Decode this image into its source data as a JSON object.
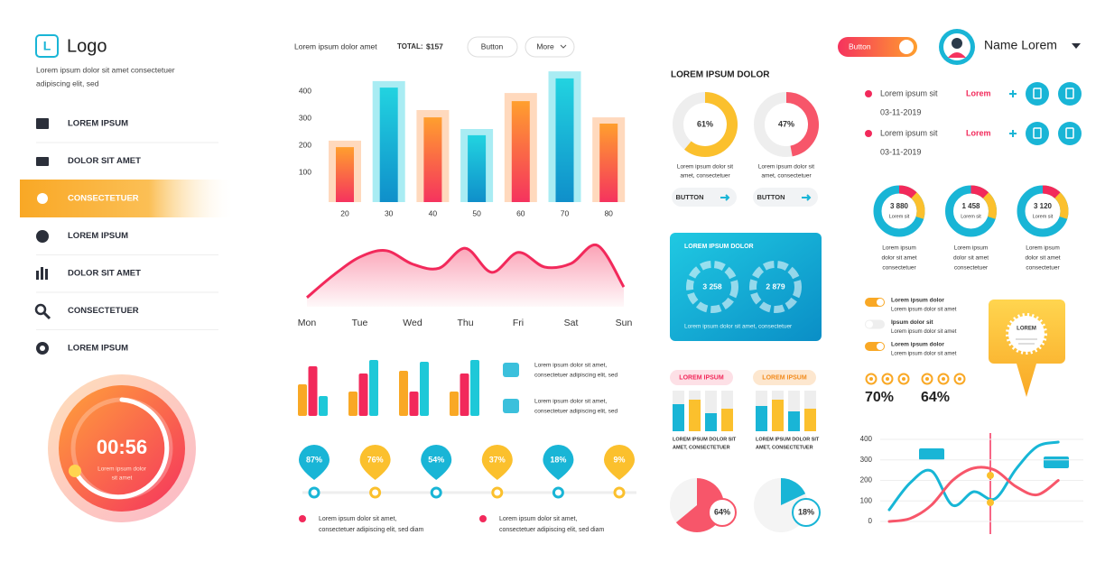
{
  "sidebar": {
    "logo_letter": "L",
    "logo": "Logo",
    "tagline": [
      "Lorem ipsum dolor sit amet consectetuer",
      "adipiscing elit, sed"
    ],
    "menu": [
      "LOREM IPSUM",
      "DOLOR SIT AMET",
      "CONSECTETUER",
      "LOREM IPSUM",
      "DOLOR SIT AMET",
      "CONSECTETUER",
      "LOREM IPSUM"
    ],
    "active": 2,
    "timer": {
      "time": "00:56",
      "caption": [
        "Lorem ipsum dolor",
        "sit amet"
      ]
    }
  },
  "toolbar": {
    "text": "Lorem ipsum dolor amet",
    "total_label": "TOTAL:",
    "total": "$157",
    "button": "Button",
    "more": "More"
  },
  "bar_chart": {
    "categories": [
      "20",
      "30",
      "40",
      "50",
      "60",
      "70",
      "80"
    ],
    "back": [
      217,
      437,
      330,
      260,
      393,
      473,
      303
    ],
    "front": [
      193,
      413,
      303,
      237,
      363,
      447,
      280
    ],
    "ylim": [
      0,
      500
    ],
    "yticks": [
      100,
      200,
      300,
      400
    ]
  },
  "wave_chart": {
    "categories": [
      "Mon",
      null,
      "Tue",
      null,
      "Wed",
      null,
      "Thu",
      null,
      "Fri",
      null,
      "Sat",
      null,
      "Sun"
    ],
    "values": [
      8,
      46,
      77,
      88,
      65,
      58,
      92,
      51,
      85,
      60,
      66,
      97,
      26
    ],
    "ylim": [
      0,
      100
    ]
  },
  "group_chart": {
    "series": [
      {
        "color": "#f9a825",
        "values": [
          35,
          27,
          50,
          27
        ]
      },
      {
        "color": "#f2295b",
        "values": [
          55,
          47,
          27,
          47
        ]
      },
      {
        "color": "#1ec8d8",
        "values": [
          22,
          62,
          60,
          62
        ]
      }
    ],
    "ylim": [
      0,
      70
    ],
    "notes": [
      [
        "Lorem ipsum dolor sit amet,",
        "consectetuer adipiscing elit, sed"
      ],
      [
        "Lorem ipsum dolor sit amet,",
        "consectetuer adipiscing elit, sed"
      ]
    ]
  },
  "timeline": {
    "pins": [
      "87%",
      "76%",
      "54%",
      "37%",
      "18%",
      "9%"
    ],
    "colors": [
      "#19b5d6",
      "#fbc02d"
    ]
  },
  "footer_notes": [
    [
      "Lorem ipsum dolor sit amet,",
      "consectetuer adipiscing elit, sed diam"
    ],
    [
      "Lorem ipsum dolor sit amet,",
      "consectetuer adipiscing elit, sed diam"
    ]
  ],
  "header_right": {
    "toggle": "Button",
    "name": "Name Lorem"
  },
  "donut_panel": {
    "title": "LOREM IPSUM DOLOR",
    "donuts": [
      {
        "value": 61,
        "label": "61%",
        "color": "#fbc02d",
        "caption": [
          "Lorem ipsum dolor sit",
          "amet, consectetuer"
        ],
        "button": "BUTTON"
      },
      {
        "value": 47,
        "label": "47%",
        "color": "#f7566a",
        "caption": [
          "Lorem ipsum dolor sit",
          "amet, consectetuer"
        ],
        "button": "BUTTON"
      }
    ]
  },
  "blue_card": {
    "title": "LOREM IPSUM DOLOR",
    "rings": [
      "3 258",
      "2 879"
    ],
    "caption": "Lorem ipsum dolor sit amet, consectetuer"
  },
  "mini_bars": [
    {
      "label": "LOREM IPSUM",
      "values": [
        30,
        35,
        20,
        25
      ],
      "caption": [
        "LOREM IPSUM DOLOR SIT",
        "AMET, CONSECTETUER"
      ]
    },
    {
      "label": "LOREM IPSUM",
      "values": [
        28,
        35,
        22,
        25
      ],
      "caption": [
        "LOREM IPSUM DOLOR SIT",
        "AMET, CONSECTETUER"
      ]
    }
  ],
  "mini_ylim": [
    0,
    45
  ],
  "pies": [
    {
      "value": 64,
      "label": "64%",
      "color": "#f7566a"
    },
    {
      "value": 18,
      "label": "18%",
      "color": "#19b5d6"
    }
  ],
  "tasks": [
    {
      "text": "Lorem ipsum sit",
      "date": "03-11-2019",
      "tag": "Lorem"
    },
    {
      "text": "Lorem ipsum sit",
      "date": "03-11-2019",
      "tag": "Lorem"
    }
  ],
  "rings": [
    {
      "value": "3 880",
      "sub": "Lorem sit",
      "caption": [
        "Lorem ipsum",
        "dolor sit amet",
        "consectetuer"
      ]
    },
    {
      "value": "1 458",
      "sub": "Lorem sit",
      "caption": [
        "Lorem ipsum",
        "dolor sit amet",
        "consectetuer"
      ]
    },
    {
      "value": "3 120",
      "sub": "Lorem sit",
      "caption": [
        "Lorem ipsum",
        "dolor sit amet",
        "consectetuer"
      ]
    }
  ],
  "toggles": [
    {
      "on": true,
      "text": [
        "Lorem ipsum dolor",
        "Lorem ipsum dolor sit amet"
      ]
    },
    {
      "on": false,
      "text": [
        "Ipsum dolor sit",
        "Lorem ipsum dolor sit amet"
      ]
    },
    {
      "on": true,
      "text": [
        "Lorem ipsum dolor",
        "Lorem ipsum dolor sit amet"
      ]
    }
  ],
  "ratings": [
    "70%",
    "64%"
  ],
  "callout": "LOREM",
  "line_chart": {
    "series": [
      {
        "color": "#17b6d6",
        "values": [
          57,
          189,
          246,
          79,
          145,
          110,
          255,
          365,
          387
        ]
      },
      {
        "color": "#f7566a",
        "values": [
          0,
          15,
          80,
          200,
          260,
          250,
          170,
          130,
          200
        ]
      }
    ],
    "ylim": [
      0,
      420
    ],
    "yticks": [
      0,
      100,
      200,
      300,
      400
    ]
  }
}
